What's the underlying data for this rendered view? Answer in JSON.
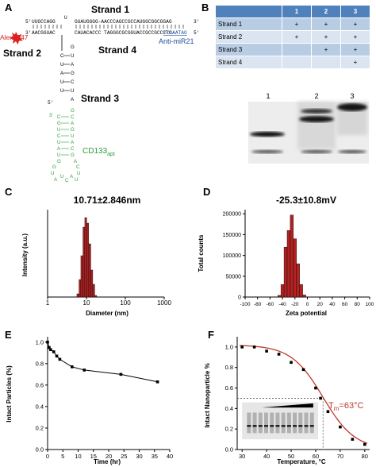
{
  "panelA": {
    "label": "A",
    "strand1": "Strand 1",
    "strand2": "Strand 2",
    "strand3": "Strand 3",
    "strand4": "Strand 4",
    "alexa": "Alexa647",
    "antimir": "Anti-miR21",
    "cd133": "CD133",
    "cd133_sub": "apt",
    "seq_top_5": "5'",
    "seq_top_left": "UUGCCAGG",
    "seq_top_u": "U",
    "seq_top_right": "GUAUGGGG-AACCCAGCCGCCAUGGCGGCGGAG",
    "seq_top_3": "3'",
    "seq_mid_3": "3'",
    "seq_mid_left": "AACGGUAC",
    "seq_mid_right": "CAUACACCC TAGGGCGCGGUACCGCCGCCCTC-",
    "seq_mid_blue": "TCGAATAG",
    "seq_mid_5": "5'",
    "stem_left": [
      "C",
      "U",
      "A",
      "U",
      "U"
    ],
    "stem_right": [
      "G",
      "U",
      "A",
      "G",
      "C",
      "U",
      "A"
    ],
    "stem_5": "5'",
    "apt_3": "3'",
    "apt_left": [
      "C",
      "G",
      "U",
      "C",
      "U",
      "A",
      "U",
      "G"
    ],
    "apt_right": [
      "G",
      "C",
      "A",
      "G",
      "U",
      "A",
      "C",
      "G"
    ],
    "apt_loop": [
      "G",
      "U",
      "A",
      "U",
      "C",
      "A",
      "U",
      "U",
      "C",
      "A"
    ]
  },
  "panelB": {
    "label": "B",
    "columns": [
      "1",
      "2",
      "3"
    ],
    "rows": [
      {
        "name": "Strand 1",
        "marks": [
          "+",
          "+",
          "+"
        ]
      },
      {
        "name": "Strand 2",
        "marks": [
          "+",
          "+",
          "+"
        ]
      },
      {
        "name": "Strand 3",
        "marks": [
          "",
          "+",
          "+"
        ]
      },
      {
        "name": "Strand 4",
        "marks": [
          "",
          "",
          "+"
        ]
      }
    ],
    "lanes": [
      "1",
      "2",
      "3"
    ]
  },
  "panelC": {
    "label": "C",
    "title": "10.71±2.846nm",
    "xlabel": "Diameter (nm)",
    "ylabel": "Intensity (a.u.)",
    "xticks": [
      "1",
      "10",
      "100",
      "1000"
    ]
  },
  "panelD": {
    "label": "D",
    "title": "-25.3±10.8mV",
    "xlabel": "Zeta potential",
    "ylabel": "Total counts",
    "xticks": [
      "-100",
      "-80",
      "-60",
      "-40",
      "-20",
      "0",
      "20",
      "40",
      "60",
      "80",
      "100"
    ],
    "yticks": [
      "0",
      "50000",
      "100000",
      "150000",
      "200000"
    ]
  },
  "panelE": {
    "label": "E",
    "xlabel": "Time (hr)",
    "ylabel": "Intact Particles (%)",
    "xticks": [
      "0",
      "5",
      "10",
      "15",
      "20",
      "25",
      "30",
      "35",
      "40"
    ],
    "yticks": [
      "0.0",
      "0.2",
      "0.4",
      "0.6",
      "0.8",
      "1.0"
    ]
  },
  "panelF": {
    "label": "F",
    "xlabel": "Temperature, °C",
    "ylabel": "Intact Nanoparticle %",
    "tm_text": "T",
    "tm_sub": "m",
    "tm_val": "=63°C",
    "xticks": [
      "30",
      "40",
      "50",
      "60",
      "70",
      "80"
    ],
    "yticks": [
      "0.0",
      "0.2",
      "0.4",
      "0.6",
      "0.8",
      "1.0"
    ]
  },
  "chart_data": [
    {
      "type": "bar",
      "panel": "C",
      "title": "10.71±2.846nm",
      "xlabel": "Diameter (nm)",
      "ylabel": "Intensity (a.u.)",
      "x_scale": "log",
      "xlim": [
        1,
        1000
      ],
      "x": [
        6.0,
        6.8,
        7.6,
        8.6,
        9.6,
        10.8,
        12.2,
        13.7,
        15.4,
        17.3
      ],
      "values": [
        0.04,
        0.22,
        0.52,
        0.88,
        1.0,
        0.93,
        0.67,
        0.34,
        0.16,
        0.02
      ],
      "color": "#b22222"
    },
    {
      "type": "bar",
      "panel": "D",
      "title": "-25.3±10.8mV",
      "xlabel": "Zeta potential",
      "ylabel": "Total counts",
      "xlim": [
        -100,
        100
      ],
      "ylim": [
        0,
        210000
      ],
      "x": [
        -45,
        -40,
        -35,
        -30,
        -25,
        -20,
        -15,
        -10,
        -5
      ],
      "values": [
        4000,
        30000,
        120000,
        160000,
        197000,
        140000,
        80000,
        30000,
        5000
      ],
      "color": "#b22222"
    },
    {
      "type": "line",
      "panel": "E",
      "xlabel": "Time (hr)",
      "ylabel": "Intact Particles (%)",
      "xlim": [
        0,
        40
      ],
      "ylim": [
        0,
        1.05
      ],
      "x": [
        0,
        0.5,
        1,
        2,
        3,
        4,
        8,
        12,
        24,
        36
      ],
      "values": [
        1.0,
        0.95,
        0.93,
        0.91,
        0.87,
        0.84,
        0.77,
        0.74,
        0.7,
        0.63
      ]
    },
    {
      "type": "scatter",
      "panel": "F",
      "xlabel": "Temperature, °C",
      "ylabel": "Intact Nanoparticle %",
      "xlim": [
        28,
        82
      ],
      "ylim": [
        0,
        1.1
      ],
      "x": [
        30,
        35,
        40,
        45,
        50,
        55,
        60,
        62,
        65,
        70,
        75,
        80
      ],
      "values": [
        1.0,
        1.0,
        0.96,
        0.93,
        0.85,
        0.78,
        0.6,
        0.5,
        0.37,
        0.22,
        0.1,
        0.05
      ],
      "fit_color": "#c0392b",
      "tm": 63
    }
  ]
}
